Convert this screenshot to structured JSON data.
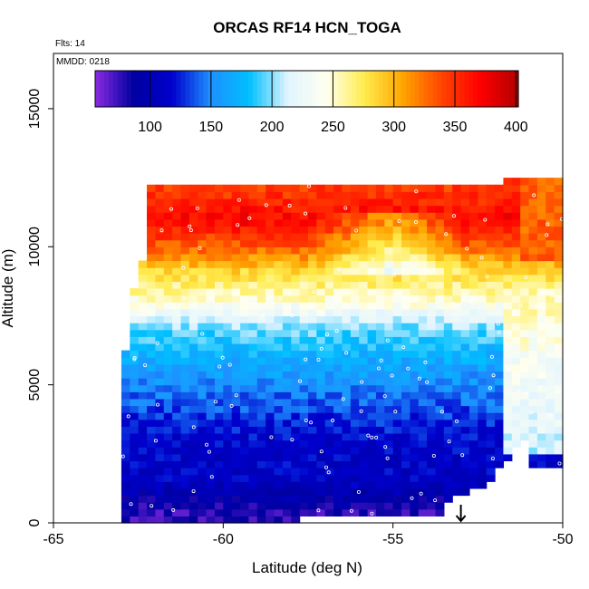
{
  "chart_data": {
    "type": "heatmap",
    "title": "ORCAS RF14 HCN_TOGA",
    "annotations": {
      "flights": "Flts: 14",
      "date": "MMDD: 0218"
    },
    "xlabel": "Latitude (deg N)",
    "ylabel": "Altitude (m)",
    "xlim": [
      -65,
      -50
    ],
    "ylim": [
      0,
      17000
    ],
    "xticks": [
      "-65",
      "-60",
      "-55",
      "-50"
    ],
    "yticks": [
      "0",
      "5000",
      "10000",
      "15000"
    ],
    "colorbar": {
      "min": 55,
      "max": 402,
      "ticks": [
        "100",
        "150",
        "200",
        "250",
        "300",
        "350",
        "400"
      ],
      "colors": [
        "#8a2be2",
        "#0000a0",
        "#0000cd",
        "#1e90ff",
        "#00bfff",
        "#e0f4ff",
        "#fffff0",
        "#ffec4d",
        "#ffa500",
        "#ff4500",
        "#ff0000",
        "#b00000"
      ]
    },
    "grid": false,
    "profile": [
      {
        "alt": 300,
        "value": 75
      },
      {
        "alt": 1500,
        "value": 110
      },
      {
        "alt": 3000,
        "value": 115
      },
      {
        "alt": 4500,
        "value": 140
      },
      {
        "alt": 6000,
        "value": 170
      },
      {
        "alt": 7000,
        "value": 195
      },
      {
        "alt": 8000,
        "value": 245
      },
      {
        "alt": 9000,
        "value": 280
      },
      {
        "alt": 10000,
        "value": 330
      },
      {
        "alt": 11000,
        "value": 370
      },
      {
        "alt": 12000,
        "value": 345
      }
    ],
    "marker_latitude": -53
  }
}
